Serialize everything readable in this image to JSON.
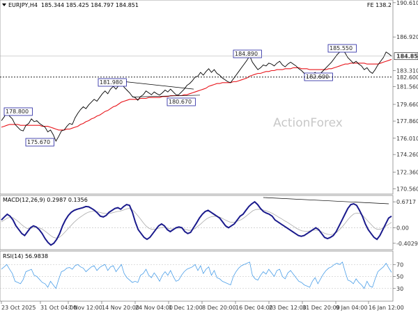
{
  "header": {
    "symbol": "EURJPY,H4",
    "ohlc": "185.344 185.425 184.797 184.851",
    "corner": "FE 138.2"
  },
  "watermark": "ActionForex",
  "colors": {
    "price": "#000000",
    "ema": "#e8151b",
    "macd": "#1a1a8c",
    "signal": "#aaaaaa",
    "rsi": "#4a9ee8",
    "annotation_border": "#1f1f9e",
    "grid": "#d8d8d8"
  },
  "chart_data": [
    {
      "type": "line",
      "panel": "price",
      "ylim": [
        170.0,
        190.0
      ],
      "y_ticks": [
        "190.610",
        "186.920",
        "184.851",
        "183.310",
        "182.600",
        "181.560",
        "179.660",
        "177.860",
        "176.010",
        "174.260",
        "172.360",
        "170.560"
      ],
      "current_price": "184.851",
      "support_level": "182.600",
      "x_tick_labels": [
        "23 Oct 2025",
        "31 Oct 04:00",
        "7 Nov 12:00",
        "14 Nov 20:00",
        "24 Nov 04:00",
        "1 Dec 12:00",
        "8 Dec 20:00",
        "16 Dec 04:00",
        "23 Dec 12:00",
        "31 Dec 20:00",
        "9 Jan 04:00",
        "16 Jan 12:00"
      ],
      "annotations": [
        "178.800",
        "175.670",
        "181.980",
        "180.670",
        "184.890",
        "182.600",
        "185.550"
      ],
      "series": [
        {
          "name": "",
          "values": [
            177.9,
            178.3,
            178.8,
            178.4,
            178.1,
            177.5,
            177.2,
            176.9,
            176.8,
            177.4,
            177.6,
            178.1,
            177.8,
            177.9,
            177.6,
            177.4,
            177.2,
            176.7,
            176.9,
            176.4,
            175.7,
            176.2,
            176.8,
            176.9,
            177.3,
            177.6,
            177.5,
            178.2,
            178.7,
            179.1,
            179.4,
            179.2,
            179.6,
            179.9,
            180.2,
            180.0,
            180.4,
            180.8,
            181.1,
            180.8,
            181.3,
            181.6,
            181.3,
            181.7,
            181.98,
            181.5,
            181.2,
            180.9,
            180.5,
            180.4,
            180.1,
            180.5,
            180.7,
            181.1,
            180.9,
            180.7,
            181.0,
            180.8,
            180.67,
            180.9,
            181.2,
            181.0,
            181.3,
            181.0,
            180.7,
            180.7,
            181.0,
            181.3,
            181.7,
            181.9,
            182.2,
            182.6,
            182.7,
            183.1,
            182.8,
            183.2,
            183.5,
            183.1,
            183.4,
            183.0,
            182.8,
            182.5,
            182.3,
            182.1,
            182.0,
            182.4,
            182.8,
            183.2,
            183.6,
            184.0,
            184.4,
            184.89,
            184.2,
            183.8,
            183.4,
            183.6,
            183.9,
            183.8,
            184.1,
            184.0,
            183.8,
            184.1,
            184.3,
            183.9,
            183.7,
            184.0,
            184.2,
            184.0,
            183.8,
            183.5,
            183.3,
            183.0,
            182.8,
            182.6,
            182.9,
            183.1,
            182.8,
            183.0,
            183.3,
            183.6,
            183.9,
            184.2,
            184.6,
            185.0,
            185.3,
            185.55,
            185.2,
            184.7,
            184.4,
            184.1,
            184.3,
            184.0,
            183.8,
            183.4,
            183.6,
            183.2,
            183.0,
            183.4,
            183.9,
            184.3,
            184.7,
            185.3,
            185.1,
            184.851
          ]
        },
        {
          "name": "",
          "values": [
            177.2,
            177.3,
            177.4,
            177.5,
            177.5,
            177.5,
            177.5,
            177.4,
            177.4,
            177.4,
            177.4,
            177.4,
            177.4,
            177.4,
            177.4,
            177.3,
            177.3,
            177.3,
            177.2,
            177.1,
            177.0,
            176.9,
            176.9,
            176.9,
            177.0,
            177.0,
            177.1,
            177.2,
            177.3,
            177.5,
            177.6,
            177.8,
            177.9,
            178.1,
            178.2,
            178.4,
            178.5,
            178.7,
            178.9,
            179.0,
            179.2,
            179.4,
            179.5,
            179.7,
            179.9,
            180.0,
            180.1,
            180.2,
            180.2,
            180.2,
            180.2,
            180.3,
            180.3,
            180.3,
            180.4,
            180.4,
            180.4,
            180.4,
            180.4,
            180.5,
            180.5,
            180.5,
            180.6,
            180.6,
            180.6,
            180.6,
            180.6,
            180.7,
            180.7,
            180.8,
            180.9,
            181.0,
            181.1,
            181.2,
            181.3,
            181.4,
            181.6,
            181.7,
            181.8,
            181.9,
            181.9,
            182.0,
            182.0,
            182.0,
            182.0,
            182.1,
            182.1,
            182.2,
            182.3,
            182.4,
            182.5,
            182.7,
            182.8,
            182.9,
            183.0,
            183.0,
            183.1,
            183.2,
            183.2,
            183.3,
            183.3,
            183.4,
            183.4,
            183.4,
            183.5,
            183.5,
            183.5,
            183.6,
            183.6,
            183.6,
            183.5,
            183.5,
            183.5,
            183.4,
            183.4,
            183.4,
            183.4,
            183.4,
            183.4,
            183.4,
            183.5,
            183.5,
            183.6,
            183.7,
            183.8,
            183.9,
            184.0,
            184.0,
            184.1,
            184.1,
            184.1,
            184.1,
            184.1,
            184.1,
            184.0,
            184.0,
            184.0,
            184.0,
            184.0,
            184.1,
            184.2,
            184.3,
            184.4,
            184.5
          ]
        }
      ]
    },
    {
      "type": "line",
      "panel": "macd",
      "title": "MACD(12,26,9) 0.2987 0.1356",
      "ylim": [
        -0.55,
        0.8
      ],
      "y_ticks": [
        "0.6717",
        "0.00",
        "-0.4029"
      ],
      "series": [
        {
          "name": "",
          "values": [
            0.2,
            0.28,
            0.35,
            0.3,
            0.2,
            0.05,
            -0.05,
            -0.15,
            -0.2,
            -0.1,
            0.0,
            0.05,
            0.02,
            -0.05,
            -0.15,
            -0.28,
            -0.38,
            -0.45,
            -0.4,
            -0.3,
            -0.15,
            0.05,
            0.2,
            0.32,
            0.4,
            0.45,
            0.48,
            0.5,
            0.52,
            0.55,
            0.54,
            0.5,
            0.45,
            0.38,
            0.3,
            0.28,
            0.32,
            0.4,
            0.45,
            0.5,
            0.52,
            0.48,
            0.55,
            0.6,
            0.58,
            0.4,
            0.15,
            -0.05,
            -0.15,
            -0.25,
            -0.3,
            -0.25,
            -0.15,
            -0.05,
            0.05,
            0.1,
            0.05,
            -0.05,
            -0.1,
            -0.05,
            0.0,
            0.02,
            0.0,
            -0.1,
            -0.15,
            -0.12,
            0.0,
            0.12,
            0.25,
            0.35,
            0.42,
            0.45,
            0.4,
            0.35,
            0.3,
            0.25,
            0.15,
            0.05,
            0.0,
            0.05,
            0.1,
            0.2,
            0.3,
            0.35,
            0.45,
            0.55,
            0.62,
            0.67,
            0.6,
            0.5,
            0.42,
            0.38,
            0.35,
            0.3,
            0.2,
            0.15,
            0.1,
            0.05,
            0.0,
            -0.05,
            -0.1,
            -0.15,
            -0.2,
            -0.22,
            -0.2,
            -0.15,
            -0.1,
            -0.05,
            0.0,
            -0.05,
            -0.15,
            -0.25,
            -0.28,
            -0.25,
            -0.2,
            -0.1,
            0.05,
            0.2,
            0.35,
            0.5,
            0.6,
            0.62,
            0.58,
            0.45,
            0.3,
            0.1,
            -0.05,
            -0.15,
            -0.25,
            -0.3,
            -0.2,
            -0.05,
            0.1,
            0.25,
            0.3
          ]
        },
        {
          "name": "",
          "values": [
            0.15,
            0.2,
            0.25,
            0.27,
            0.26,
            0.21,
            0.15,
            0.08,
            0.02,
            -0.02,
            -0.02,
            0.0,
            0.01,
            0.0,
            -0.03,
            -0.08,
            -0.14,
            -0.2,
            -0.25,
            -0.27,
            -0.25,
            -0.19,
            -0.11,
            -0.03,
            0.05,
            0.13,
            0.2,
            0.26,
            0.31,
            0.36,
            0.4,
            0.42,
            0.43,
            0.42,
            0.4,
            0.38,
            0.37,
            0.37,
            0.38,
            0.4,
            0.42,
            0.43,
            0.45,
            0.48,
            0.5,
            0.48,
            0.42,
            0.33,
            0.24,
            0.14,
            0.05,
            -0.01,
            -0.04,
            -0.04,
            -0.02,
            0.0,
            0.01,
            0.0,
            -0.02,
            -0.03,
            -0.02,
            -0.01,
            -0.01,
            -0.03,
            -0.05,
            -0.07,
            -0.05,
            -0.02,
            0.04,
            0.1,
            0.17,
            0.23,
            0.27,
            0.29,
            0.3,
            0.29,
            0.26,
            0.22,
            0.18,
            0.15,
            0.14,
            0.15,
            0.18,
            0.21,
            0.26,
            0.32,
            0.38,
            0.44,
            0.47,
            0.48,
            0.47,
            0.45,
            0.43,
            0.4,
            0.36,
            0.32,
            0.27,
            0.23,
            0.18,
            0.14,
            0.09,
            0.04,
            -0.01,
            -0.05,
            -0.08,
            -0.09,
            -0.09,
            -0.08,
            -0.06,
            -0.06,
            -0.08,
            -0.11,
            -0.15,
            -0.17,
            -0.18,
            -0.16,
            -0.12,
            -0.05,
            0.03,
            0.12,
            0.22,
            0.3,
            0.36,
            0.38,
            0.37,
            0.32,
            0.24,
            0.16,
            0.08,
            0.0,
            -0.04,
            -0.04,
            -0.01,
            0.04,
            0.09,
            0.14
          ]
        }
      ]
    },
    {
      "type": "line",
      "panel": "rsi",
      "title": "RSI(14) 56.9838",
      "ylim": [
        0,
        100
      ],
      "y_ticks": [
        "70",
        "50",
        "30"
      ],
      "series": [
        {
          "name": "",
          "values": [
            62,
            66,
            70,
            62,
            55,
            42,
            40,
            38,
            45,
            58,
            60,
            62,
            52,
            50,
            45,
            40,
            38,
            32,
            42,
            36,
            30,
            45,
            58,
            60,
            64,
            65,
            62,
            68,
            70,
            66,
            64,
            58,
            62,
            66,
            68,
            60,
            65,
            68,
            70,
            60,
            66,
            68,
            58,
            64,
            70,
            55,
            48,
            44,
            40,
            42,
            40,
            52,
            55,
            62,
            52,
            48,
            56,
            50,
            42,
            52,
            58,
            52,
            60,
            50,
            42,
            44,
            52,
            58,
            62,
            64,
            66,
            70,
            60,
            68,
            55,
            62,
            66,
            52,
            60,
            48,
            46,
            42,
            40,
            38,
            36,
            50,
            58,
            64,
            68,
            70,
            72,
            74,
            52,
            46,
            44,
            52,
            58,
            54,
            62,
            56,
            50,
            60,
            62,
            50,
            46,
            56,
            60,
            54,
            48,
            42,
            40,
            36,
            34,
            32,
            42,
            48,
            38,
            46,
            54,
            60,
            64,
            66,
            70,
            72,
            70,
            74,
            58,
            44,
            42,
            38,
            46,
            40,
            36,
            30,
            42,
            34,
            32,
            46,
            58,
            62,
            66,
            72,
            64,
            57
          ]
        }
      ]
    }
  ]
}
